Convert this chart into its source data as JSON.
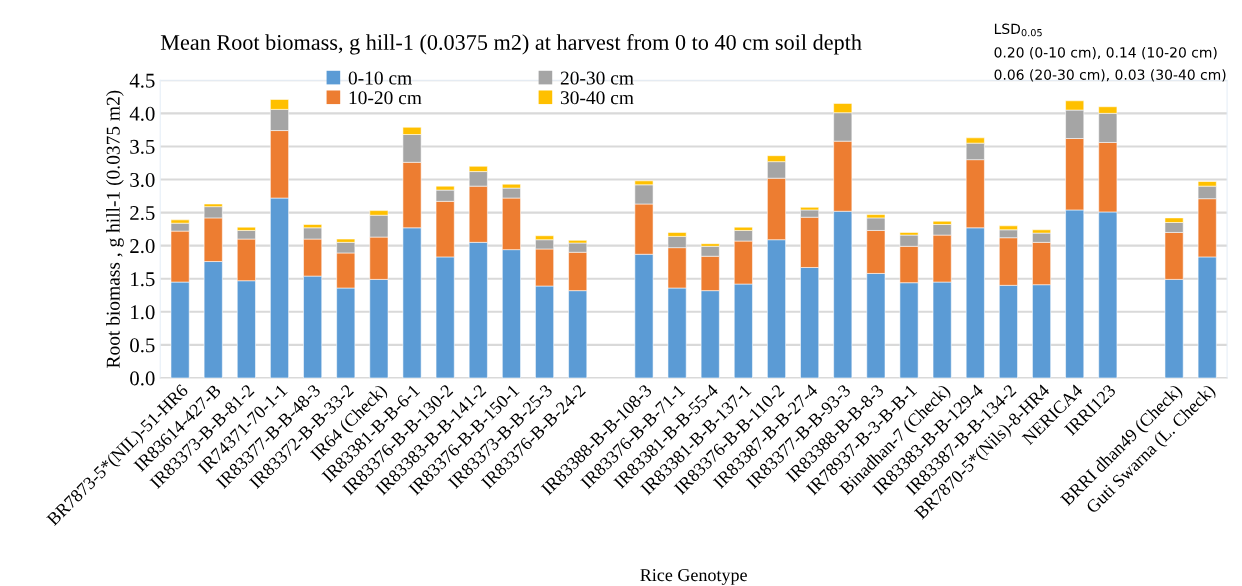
{
  "chart_data": {
    "type": "bar",
    "stacked": true,
    "title": "Mean Root biomass, g hill-1 (0.0375 m2) at harvest from 0 to 40 cm soil depth",
    "xlabel": "Rice Genotype",
    "ylabel": "Root biomass , g hill-1 (0.0375 m2)",
    "categories": [
      "BR7873-5*(NIL)-51-HR6",
      "IR83614-427-B",
      "IR83373-B-B-81-2",
      "IR74371-70-1-1",
      "IR83377-B-B-48-3",
      "IR83372-B-B-33-2",
      "IR64 (Check)",
      "IR83381-B-B-6-1",
      "IR83376-B-B-130-2",
      "IR83383-B-B-141-2",
      "IR83376-B-B-150-1",
      "IR83373-B-B-25-3",
      "IR83376-B-B-24-2",
      null,
      "IR83388-B-B-108-3",
      "IR83376-B-B-71-1",
      "IR83381-B-B-55-4",
      "IR83381-B-B-137-1",
      "IR83376-B-B-110-2",
      "IR83387-B-B-27-4",
      "IR83377-B-B-93-3",
      "IR83388-B-B-8-3",
      "IR78937-B-3-B-B-1",
      "Binadhan-7 (Check)",
      "IR83383-B-B-129-4",
      "IR83387-B-B-134-2",
      "BR7870-5*(Nils)-8-HR4",
      "NERICA4",
      "IRRI123",
      null,
      "BRRI dhan49 (Check)",
      "Guti Swarna (L. Check)"
    ],
    "series": [
      {
        "name": "0-10 cm",
        "color": "#5b9bd5",
        "values": [
          1.45,
          1.76,
          1.47,
          2.72,
          1.54,
          1.36,
          1.49,
          2.27,
          1.83,
          2.05,
          1.94,
          1.39,
          1.32,
          null,
          1.87,
          1.36,
          1.32,
          1.42,
          2.09,
          1.67,
          2.52,
          1.58,
          1.44,
          1.45,
          2.27,
          1.4,
          1.41,
          2.54,
          2.51,
          null,
          1.49,
          1.83
        ]
      },
      {
        "name": "10-20 cm",
        "color": "#ed7d31",
        "values": [
          0.77,
          0.66,
          0.63,
          1.02,
          0.56,
          0.53,
          0.64,
          0.99,
          0.84,
          0.85,
          0.78,
          0.56,
          0.58,
          null,
          0.76,
          0.61,
          0.52,
          0.65,
          0.93,
          0.76,
          1.06,
          0.65,
          0.55,
          0.71,
          1.03,
          0.72,
          0.64,
          1.08,
          1.05,
          null,
          0.71,
          0.88
        ]
      },
      {
        "name": "20-30 cm",
        "color": "#a5a5a5",
        "values": [
          0.12,
          0.17,
          0.13,
          0.32,
          0.17,
          0.16,
          0.33,
          0.42,
          0.17,
          0.22,
          0.15,
          0.14,
          0.14,
          null,
          0.29,
          0.17,
          0.15,
          0.16,
          0.25,
          0.11,
          0.43,
          0.19,
          0.17,
          0.16,
          0.25,
          0.12,
          0.14,
          0.43,
          0.44,
          null,
          0.15,
          0.19
        ]
      },
      {
        "name": "30-40 cm",
        "color": "#ffc000",
        "values": [
          0.05,
          0.04,
          0.05,
          0.15,
          0.05,
          0.05,
          0.07,
          0.11,
          0.06,
          0.08,
          0.06,
          0.06,
          0.04,
          null,
          0.06,
          0.06,
          0.04,
          0.05,
          0.09,
          0.04,
          0.14,
          0.05,
          0.04,
          0.05,
          0.08,
          0.06,
          0.05,
          0.14,
          0.1,
          null,
          0.07,
          0.07
        ]
      }
    ],
    "ylim": [
      0,
      4.5
    ],
    "yticks": [
      {
        "value": 0,
        "label": "0.0"
      },
      {
        "value": 0.5,
        "label": "0.5"
      },
      {
        "value": 1,
        "label": "1.0"
      },
      {
        "value": 1.5,
        "label": "1.5"
      },
      {
        "value": 2,
        "label": "2.0"
      },
      {
        "value": 2.5,
        "label": "2.5"
      },
      {
        "value": 3,
        "label": "3.0"
      },
      {
        "value": 3.5,
        "label": "3.5"
      },
      {
        "value": 4,
        "label": "4.0"
      },
      {
        "value": 4.5,
        "label": "4.5"
      }
    ],
    "grid": "y",
    "legend": "top",
    "annotations": [
      "LSD$_{0.05}$",
      "0.20 (0-10 cm), 0.14 (10-20 cm)",
      "0.06 (20-30 cm), 0.03 (30-40 cm)"
    ]
  }
}
